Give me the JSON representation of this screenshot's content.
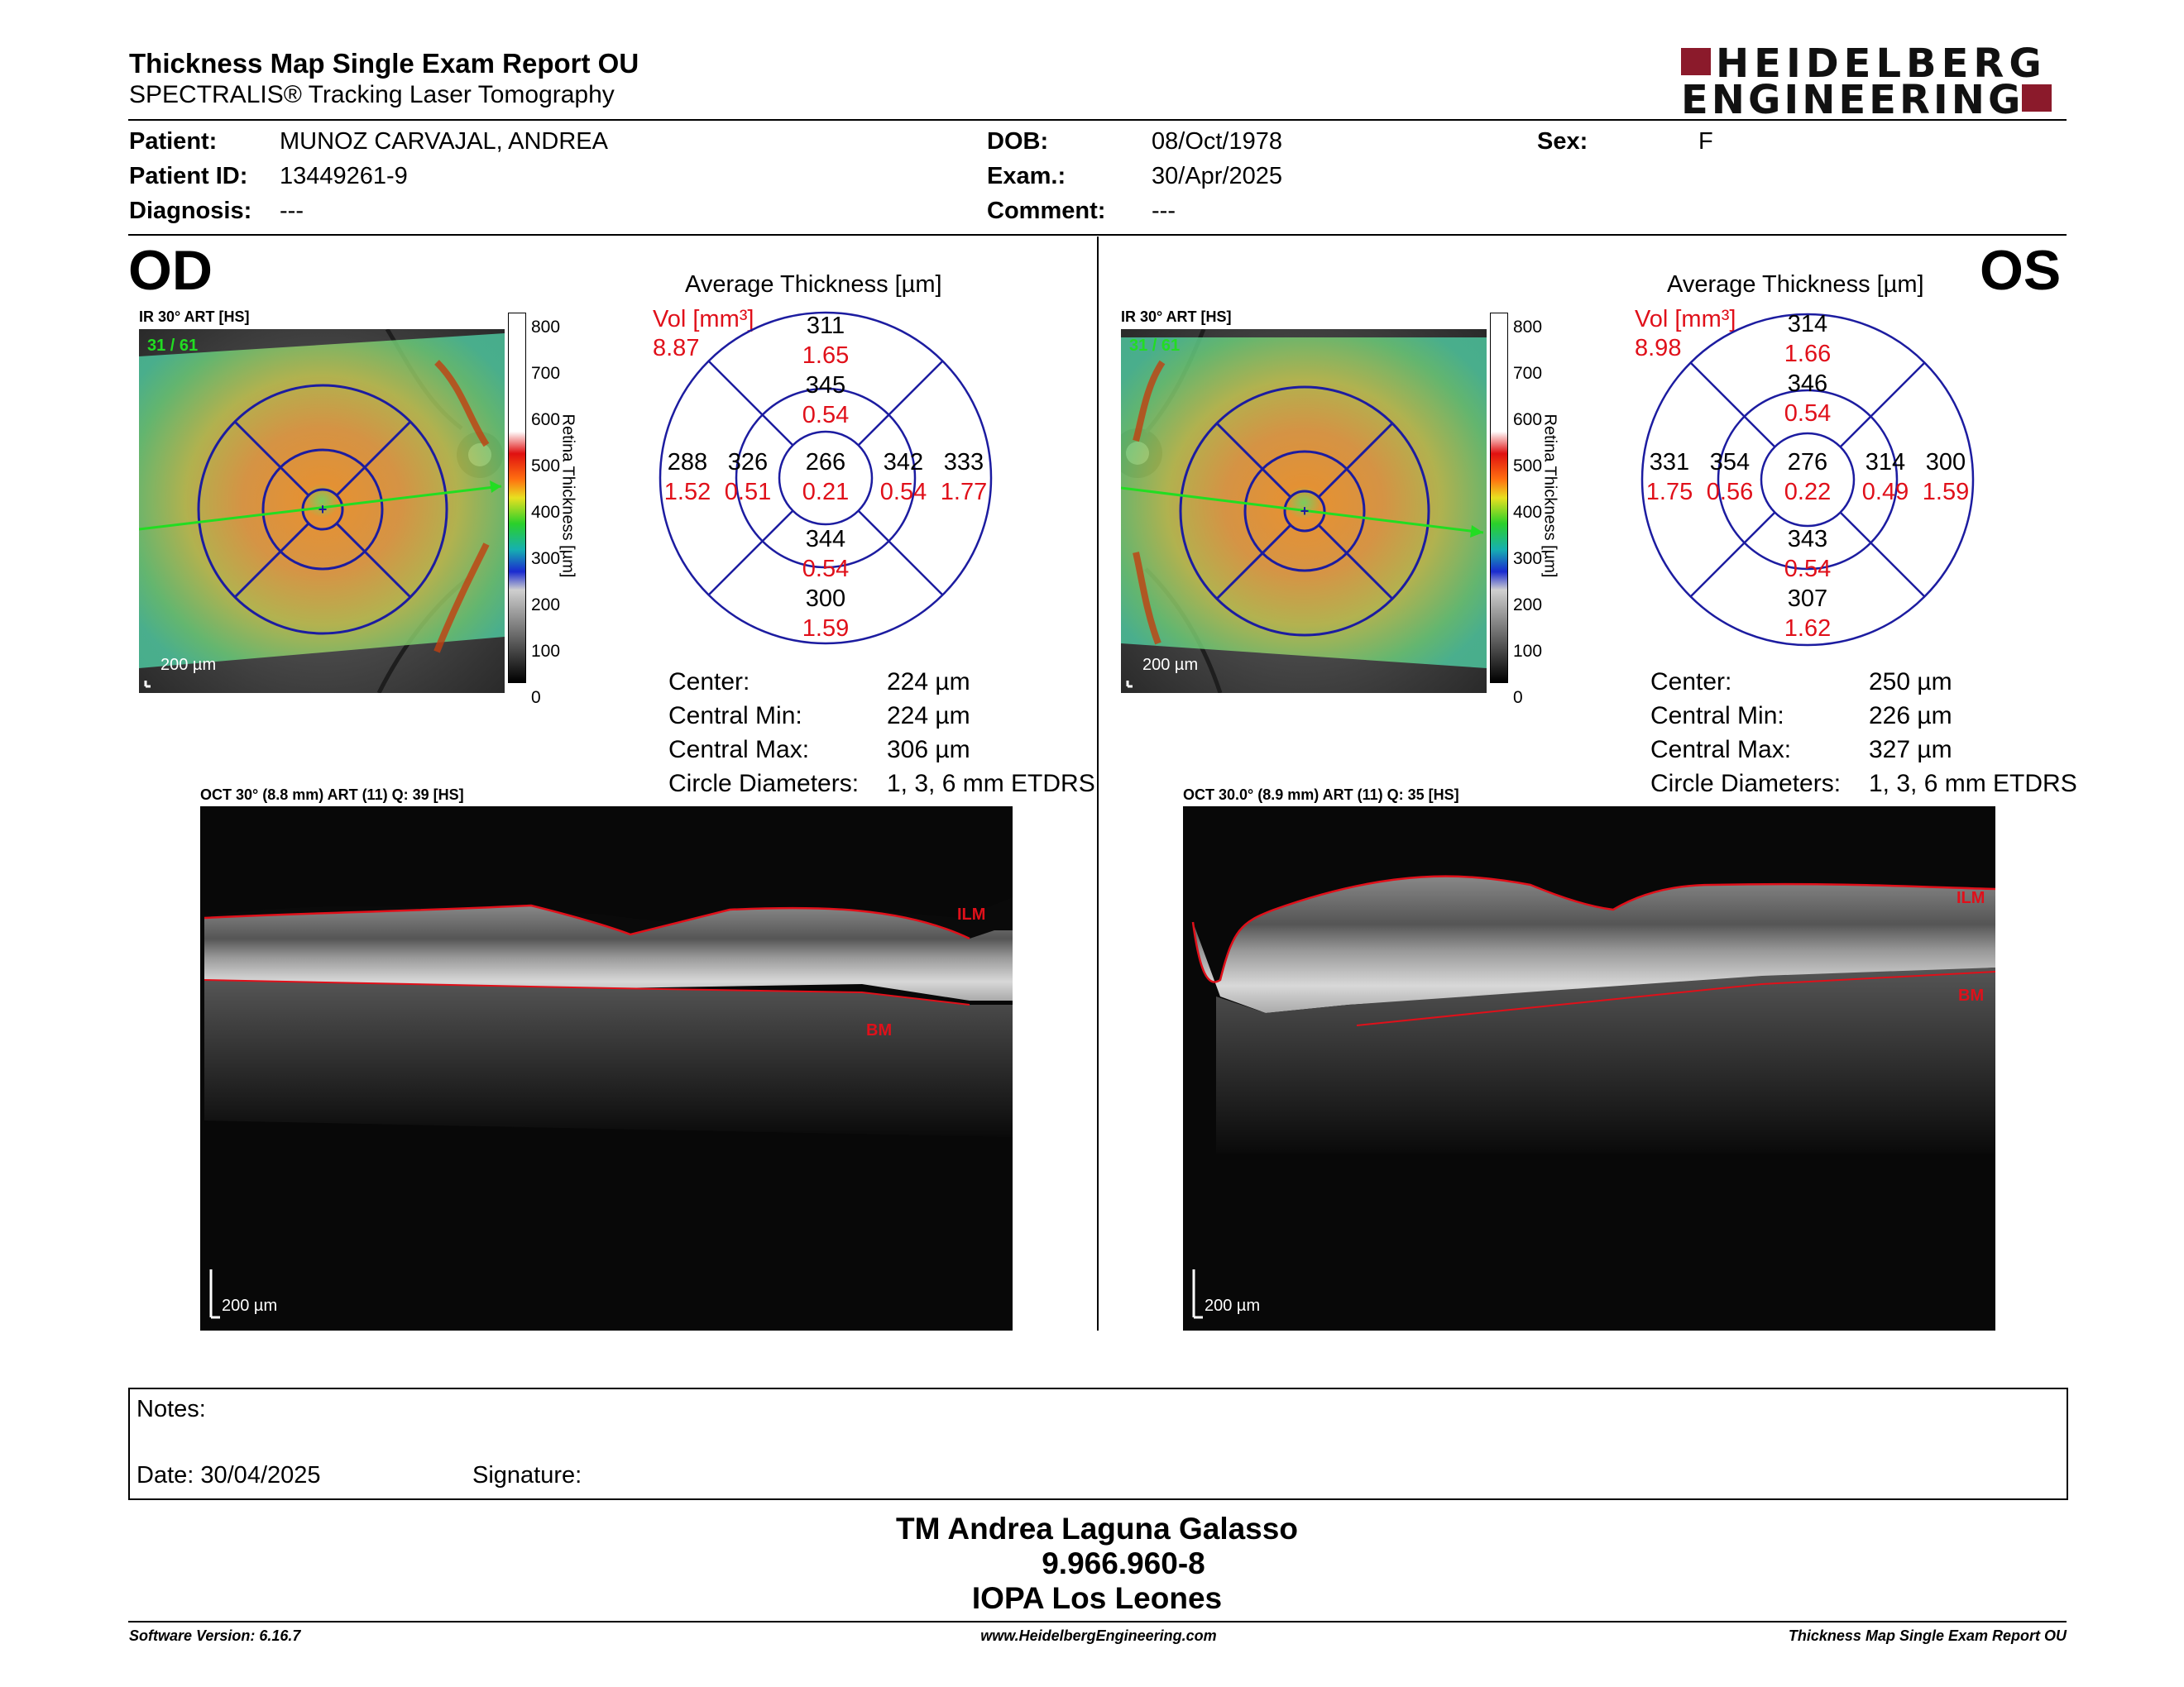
{
  "header": {
    "title": "Thickness Map Single Exam Report OU",
    "subtitle": "SPECTRALIS® Tracking Laser Tomography",
    "logo_line1": "HEIDELBERG",
    "logo_line2": "ENGINEERING"
  },
  "patient": {
    "patient_label": "Patient:",
    "patient_value": "MUNOZ CARVAJAL, ANDREA",
    "id_label": "Patient ID:",
    "id_value": "13449261-9",
    "diagnosis_label": "Diagnosis:",
    "diagnosis_value": "---",
    "dob_label": "DOB:",
    "dob_value": "08/Oct/1978",
    "exam_label": "Exam.:",
    "exam_value": "30/Apr/2025",
    "comment_label": "Comment:",
    "comment_value": "---",
    "sex_label": "Sex:",
    "sex_value": "F"
  },
  "colors": {
    "red": "#e0101a",
    "blue": "#1c1ca0",
    "logo": "#8b1a2b",
    "green": "#22dd22"
  },
  "od": {
    "eye": "OD",
    "ir_label": "IR 30° ART [HS]",
    "ir_counter": "31 / 61",
    "scale_bar": "200 µm",
    "colorbar_ticks": [
      "800",
      "700",
      "600",
      "500",
      "400",
      "300",
      "200",
      "100",
      "0"
    ],
    "colorbar_title": "Retina Thickness [µm]",
    "avg_title": "Average Thickness [µm]",
    "vol_label": "Vol [mm³]",
    "vol_value": "8.87",
    "etdrs": {
      "center": {
        "t": "266",
        "v": "0.21"
      },
      "inner_top": {
        "t": "345",
        "v": "0.54"
      },
      "inner_bottom": {
        "t": "344",
        "v": "0.54"
      },
      "inner_left": {
        "t": "326",
        "v": "0.51"
      },
      "inner_right": {
        "t": "342",
        "v": "0.54"
      },
      "outer_top": {
        "t": "311",
        "v": "1.65"
      },
      "outer_bottom": {
        "t": "300",
        "v": "1.59"
      },
      "outer_left": {
        "t": "288",
        "v": "1.52"
      },
      "outer_right": {
        "t": "333",
        "v": "1.77"
      }
    },
    "stats": {
      "center_label": "Center:",
      "center_value": "224 µm",
      "min_label": "Central Min:",
      "min_value": "224 µm",
      "max_label": "Central Max:",
      "max_value": "306 µm",
      "diam_label": "Circle Diameters:",
      "diam_value": "1, 3, 6 mm ETDRS"
    },
    "oct_label": "OCT 30° (8.8 mm) ART (11) Q: 39 [HS]",
    "ilm": "ILM",
    "bm": "BM",
    "oct_scale": "200 µm"
  },
  "os": {
    "eye": "OS",
    "ir_label": "IR 30° ART [HS]",
    "ir_counter": "31 / 61",
    "scale_bar": "200 µm",
    "colorbar_ticks": [
      "800",
      "700",
      "600",
      "500",
      "400",
      "300",
      "200",
      "100",
      "0"
    ],
    "colorbar_title": "Retina Thickness [µm]",
    "avg_title": "Average Thickness [µm]",
    "vol_label": "Vol [mm³]",
    "vol_value": "8.98",
    "etdrs": {
      "center": {
        "t": "276",
        "v": "0.22"
      },
      "inner_top": {
        "t": "346",
        "v": "0.54"
      },
      "inner_bottom": {
        "t": "343",
        "v": "0.54"
      },
      "inner_left": {
        "t": "354",
        "v": "0.56"
      },
      "inner_right": {
        "t": "314",
        "v": "0.49"
      },
      "outer_top": {
        "t": "314",
        "v": "1.66"
      },
      "outer_bottom": {
        "t": "307",
        "v": "1.62"
      },
      "outer_left": {
        "t": "331",
        "v": "1.75"
      },
      "outer_right": {
        "t": "300",
        "v": "1.59"
      }
    },
    "stats": {
      "center_label": "Center:",
      "center_value": "250 µm",
      "min_label": "Central Min:",
      "min_value": "226 µm",
      "max_label": "Central Max:",
      "max_value": "327 µm",
      "diam_label": "Circle Diameters:",
      "diam_value": "1, 3, 6 mm ETDRS"
    },
    "oct_label": "OCT 30.0° (8.9 mm) ART (11) Q: 35 [HS]",
    "ilm": "ILM",
    "bm": "BM",
    "oct_scale": "200 µm"
  },
  "notes": {
    "notes_label": "Notes:",
    "date_label": "Date: 30/04/2025",
    "signature_label": "Signature:"
  },
  "signature": {
    "name": "TM Andrea Laguna Galasso",
    "id": "9.966.960-8",
    "place": "IOPA Los Leones"
  },
  "footer": {
    "software": "Software Version: 6.16.7",
    "url": "www.HeidelbergEngineering.com",
    "report": "Thickness Map Single Exam Report OU"
  }
}
